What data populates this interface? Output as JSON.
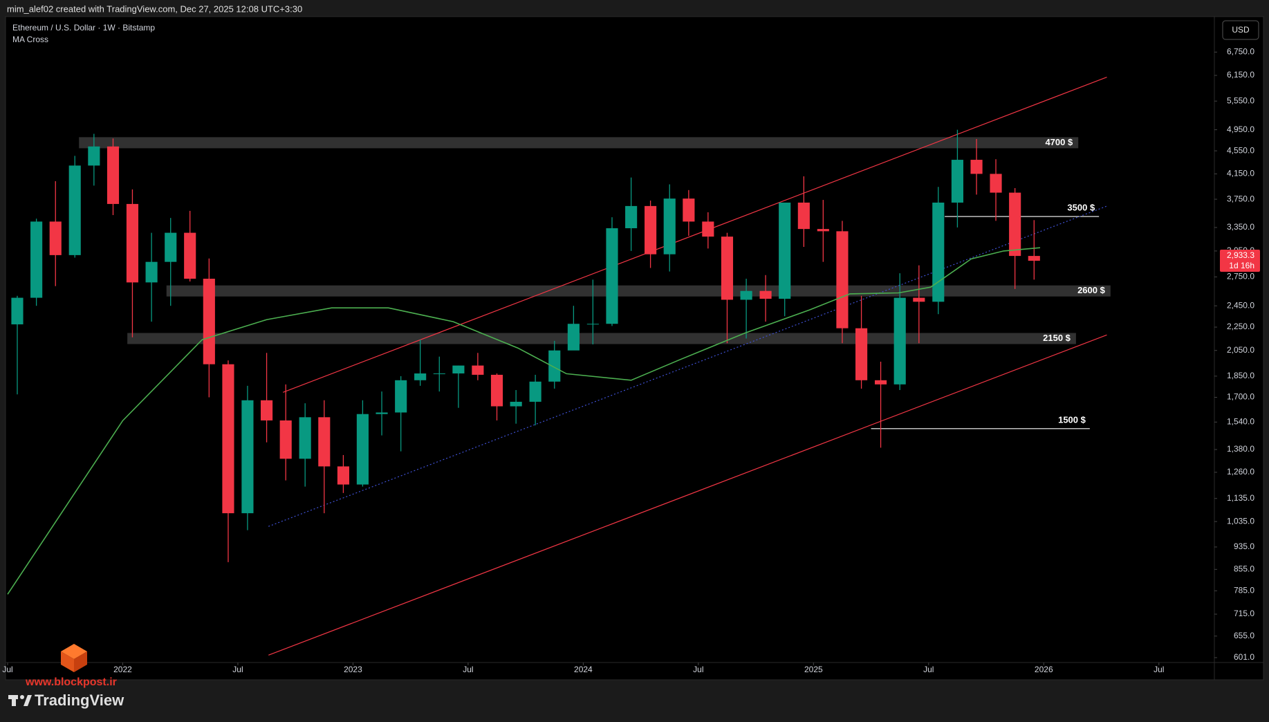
{
  "header": {
    "caption": "mim_alef02 created with TradingView.com, Dec 27, 2025 12:08 UTC+3:30"
  },
  "chart_data": {
    "type": "candlestick",
    "title": "Ethereum / U.S. Dollar · 1W · Bitstamp",
    "indicator": "MA Cross",
    "currency": "USD",
    "log_scale": true,
    "up_color": "#089981",
    "down_color": "#f23645",
    "x": [
      2021.542,
      2021.625,
      2021.708,
      2021.792,
      2021.875,
      2021.958,
      2022.042,
      2022.125,
      2022.208,
      2022.292,
      2022.375,
      2022.458,
      2022.542,
      2022.625,
      2022.708,
      2022.792,
      2022.875,
      2022.958,
      2023.042,
      2023.125,
      2023.208,
      2023.292,
      2023.375,
      2023.458,
      2023.542,
      2023.625,
      2023.708,
      2023.792,
      2023.875,
      2023.958,
      2024.042,
      2024.125,
      2024.208,
      2024.292,
      2024.375,
      2024.458,
      2024.542,
      2024.625,
      2024.708,
      2024.792,
      2024.875,
      2024.958,
      2025.042,
      2025.125,
      2025.208,
      2025.292,
      2025.375,
      2025.458,
      2025.542,
      2025.625,
      2025.708,
      2025.792,
      2025.875,
      2025.958
    ],
    "open": [
      2275,
      2530,
      3430,
      3000,
      4290,
      4630,
      3680,
      2690,
      2920,
      3280,
      2730,
      1940,
      1070,
      1680,
      1550,
      1330,
      1570,
      1290,
      1200,
      1590,
      1600,
      1820,
      1870,
      1870,
      1930,
      1860,
      1640,
      1670,
      1810,
      2050,
      2280,
      2280,
      3340,
      3650,
      3010,
      3760,
      3430,
      3230,
      2510,
      2600,
      2520,
      3700,
      3330,
      3300,
      2240,
      1820,
      1790,
      2530,
      2490,
      3700,
      4390,
      4150,
      3850,
      2990
    ],
    "high": [
      2550,
      3470,
      4030,
      4460,
      4870,
      4780,
      3900,
      3280,
      3480,
      3580,
      2960,
      1970,
      1780,
      2030,
      1790,
      1660,
      1680,
      1350,
      1680,
      1740,
      1850,
      2140,
      2000,
      1930,
      2030,
      1870,
      1750,
      1860,
      2130,
      2450,
      2720,
      3490,
      4090,
      3730,
      3980,
      3890,
      3560,
      3280,
      2730,
      2770,
      3700,
      4110,
      3740,
      3440,
      2550,
      1960,
      2790,
      2880,
      3940,
      4950,
      4770,
      4400,
      3920,
      3450
    ],
    "low": [
      1720,
      2450,
      2650,
      2970,
      3960,
      3520,
      2160,
      2300,
      2450,
      2700,
      1700,
      880,
      1000,
      1420,
      1220,
      1190,
      1070,
      1160,
      1190,
      1460,
      1370,
      1780,
      1740,
      1630,
      1820,
      1550,
      1530,
      1520,
      1760,
      2080,
      2100,
      2260,
      3050,
      2850,
      2810,
      3240,
      3080,
      2110,
      2150,
      2300,
      2350,
      3100,
      2920,
      2110,
      1760,
      1390,
      1750,
      2110,
      2370,
      3350,
      3820,
      3440,
      2620,
      2720
    ],
    "close": [
      2530,
      3430,
      3000,
      4290,
      4630,
      3680,
      2690,
      2920,
      3280,
      2730,
      1940,
      1070,
      1680,
      1550,
      1330,
      1570,
      1290,
      1200,
      1590,
      1600,
      1820,
      1870,
      1870,
      1930,
      1860,
      1640,
      1670,
      1810,
      2050,
      2280,
      2280,
      3340,
      3650,
      3010,
      3760,
      3430,
      3230,
      2510,
      2600,
      2520,
      3700,
      3330,
      3300,
      2240,
      1820,
      1790,
      2530,
      2490,
      3700,
      4390,
      4150,
      3850,
      2990,
      2933
    ],
    "ma": {
      "color": "#4caf50",
      "x": [
        2021.5,
        2022.0,
        2022.345,
        2022.626,
        2022.907,
        2023.154,
        2023.435,
        2023.716,
        2023.927,
        2024.208,
        2024.419,
        2024.701,
        2024.982,
        2025.158,
        2025.369,
        2025.509,
        2025.685,
        2025.826,
        2025.984
      ],
      "values": [
        774,
        1549,
        2140,
        2319,
        2430,
        2430,
        2300,
        2070,
        1868,
        1820,
        1975,
        2197,
        2410,
        2570,
        2580,
        2640,
        2955,
        3050,
        3090
      ]
    },
    "xlim": [
      2021.494,
      2026.738
    ],
    "xticks": [
      {
        "value": 2021.5,
        "label": "Jul"
      },
      2022,
      {
        "value": 2022.5,
        "label": "Jul"
      },
      2023,
      {
        "value": 2023.5,
        "label": "Jul"
      },
      2024,
      {
        "value": 2024.5,
        "label": "Jul"
      },
      2025,
      {
        "value": 2025.5,
        "label": "Jul"
      },
      2026,
      {
        "value": 2026.5,
        "label": "Jul"
      }
    ],
    "ylim": [
      591,
      7735
    ],
    "yticks": [
      {
        "value": 6750,
        "label": "6,750.0"
      },
      {
        "value": 6150,
        "label": "6,150.0"
      },
      {
        "value": 5550,
        "label": "5,550.0"
      },
      {
        "value": 4950,
        "label": "4,950.0"
      },
      {
        "value": 4550,
        "label": "4,550.0"
      },
      {
        "value": 4150,
        "label": "4,150.0"
      },
      {
        "value": 3750,
        "label": "3,750.0"
      },
      {
        "value": 3350,
        "label": "3,350.0"
      },
      {
        "value": 3050,
        "label": "3,050.0"
      },
      {
        "value": 2750,
        "label": "2,750.0"
      },
      {
        "value": 2450,
        "label": "2,450.0"
      },
      {
        "value": 2250,
        "label": "2,250.0"
      },
      {
        "value": 2050,
        "label": "2,050.0"
      },
      {
        "value": 1850,
        "label": "1,850.0"
      },
      {
        "value": 1700,
        "label": "1,700.0"
      },
      {
        "value": 1540,
        "label": "1,540.0"
      },
      {
        "value": 1380,
        "label": "1,380.0"
      },
      {
        "value": 1260,
        "label": "1,260.0"
      },
      {
        "value": 1135,
        "label": "1,135.0"
      },
      {
        "value": 1035,
        "label": "1,035.0"
      },
      {
        "value": 935,
        "label": "935.0"
      },
      {
        "value": 855,
        "label": "855.0"
      },
      {
        "value": 785,
        "label": "785.0"
      },
      {
        "value": 715,
        "label": "715.0"
      },
      {
        "value": 655,
        "label": "655.0"
      },
      {
        "value": 601,
        "label": "601.0"
      }
    ],
    "last_price": {
      "value": 2933.3,
      "label": "2,933.3",
      "countdown": "1d 16h"
    },
    "levels": [
      {
        "label": "4700 $",
        "value": 4700,
        "kind": "zone",
        "x": [
          2021.81,
          2026.15
        ]
      },
      {
        "label": "3500 $",
        "value": 3500,
        "kind": "line",
        "x": [
          2025.57,
          2026.24
        ]
      },
      {
        "label": "2600 $",
        "value": 2600,
        "kind": "zone",
        "x": [
          2022.19,
          2026.29
        ]
      },
      {
        "label": "2150 $",
        "value": 2150,
        "kind": "zone",
        "x": [
          2022.02,
          2026.14
        ]
      },
      {
        "label": "1500 $",
        "value": 1500,
        "kind": "line",
        "x": [
          2025.25,
          2026.2
        ]
      }
    ],
    "trendlines": [
      {
        "color": "#f23645",
        "dashed": false,
        "x": [
          2022.696,
          2026.274
        ],
        "values": [
          1734,
          6107
        ]
      },
      {
        "color": "#f23645",
        "dashed": false,
        "x": [
          2022.633,
          2026.274
        ],
        "values": [
          607,
          2181
        ]
      },
      {
        "color": "#3f51d5",
        "dashed": true,
        "x": [
          2022.633,
          2026.274
        ],
        "values": [
          1015,
          3649
        ]
      }
    ]
  },
  "footer": {
    "brand": "TradingView",
    "watermark": "www.blockpost.ir"
  }
}
